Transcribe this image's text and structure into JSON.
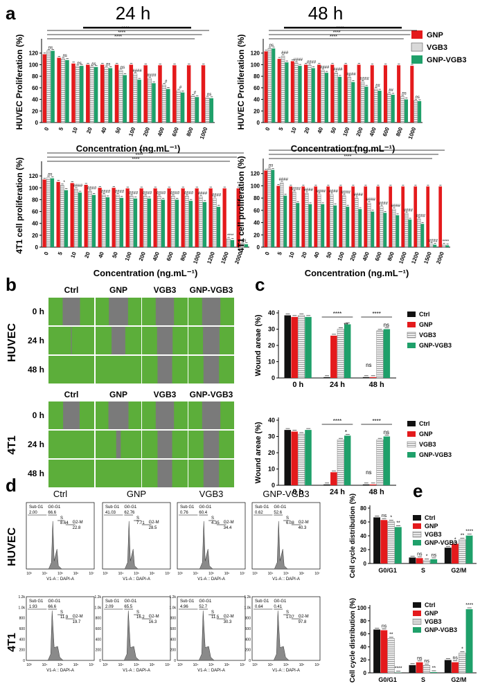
{
  "colors": {
    "gnp": "#e41a1c",
    "vgb3": "#d9d9d9",
    "gnp_vgb3": "#1fa06a",
    "ctrl": "#111111",
    "green_field": "#5cae3a",
    "wound": "#7a7a7a"
  },
  "panel_labels": {
    "a": "a",
    "b": "b",
    "c": "c",
    "d": "d",
    "e": "e"
  },
  "panel_a": {
    "header_24": "24 h",
    "header_48": "48 h",
    "legend": [
      "GNP",
      "VGB3",
      "GNP-VGB3"
    ],
    "star4": "****"
  },
  "chart_data": [
    {
      "id": "a_huvec_24",
      "type": "bar",
      "title": "HUVEC 24 h",
      "ylabel": "HUVEC Proliferation (%)",
      "xlabel": "Concentration (ng.mL⁻¹)",
      "ylim": [
        0,
        140
      ],
      "yticks": [
        0,
        20,
        40,
        60,
        80,
        100,
        120
      ],
      "categories": [
        "0",
        "5",
        "10",
        "20",
        "40",
        "50",
        "100",
        "200",
        "400",
        "600",
        "800",
        "1000"
      ],
      "series": [
        {
          "name": "GNP",
          "values": [
            118,
            112,
            102,
            100,
            100,
            100,
            100,
            99,
            99,
            99,
            99,
            99
          ]
        },
        {
          "name": "VGB3",
          "values": [
            124,
            110,
            97,
            96,
            95,
            90,
            84,
            76,
            65,
            55,
            46,
            43
          ]
        },
        {
          "name": "GNP-VGB3",
          "values": [
            124,
            108,
            98,
            96,
            94,
            82,
            74,
            68,
            58,
            52,
            44,
            42
          ]
        }
      ],
      "annotations": [
        "ns",
        "ns",
        "ns",
        "ns",
        "ns",
        "ns",
        "####",
        "####",
        "#",
        "#",
        "#",
        "ns",
        "****",
        "****",
        "****"
      ]
    },
    {
      "id": "a_huvec_48",
      "type": "bar",
      "title": "HUVEC 48 h",
      "ylabel": "HUVEC Proliferation (%)",
      "xlabel": "Concentration (ng.mL⁻¹)",
      "ylim": [
        0,
        140
      ],
      "yticks": [
        0,
        20,
        40,
        60,
        80,
        100,
        120
      ],
      "categories": [
        "0",
        "5",
        "10",
        "20",
        "40",
        "50",
        "100",
        "200",
        "400",
        "600",
        "800",
        "1000"
      ],
      "series": [
        {
          "name": "GNP",
          "values": [
            123,
            110,
            106,
            100,
            100,
            100,
            100,
            100,
            99,
            99,
            99,
            98
          ]
        },
        {
          "name": "VGB3",
          "values": [
            128,
            115,
            103,
            99,
            90,
            86,
            78,
            70,
            58,
            50,
            45,
            38
          ]
        },
        {
          "name": "GNP-VGB3",
          "values": [
            128,
            104,
            98,
            94,
            86,
            79,
            70,
            62,
            55,
            48,
            40,
            37
          ]
        }
      ],
      "annotations": [
        "ns",
        "###",
        "####",
        "####",
        "####",
        "####",
        "####",
        "####",
        "##",
        "##",
        "ns",
        "ns",
        "****",
        "****"
      ]
    },
    {
      "id": "a_4t1_24",
      "type": "bar",
      "title": "4T1 24 h",
      "ylabel": "4T1 cell proliferation (%)",
      "xlabel": "Concentration (ng.mL⁻¹)",
      "ylim": [
        0,
        140
      ],
      "yticks": [
        0,
        20,
        40,
        60,
        80,
        100,
        120
      ],
      "categories": [
        "0",
        "5",
        "10",
        "20",
        "40",
        "50",
        "100",
        "200",
        "400",
        "600",
        "800",
        "1000",
        "1200",
        "1500",
        "2000"
      ],
      "series": [
        {
          "name": "GNP",
          "values": [
            114,
            110,
            108,
            105,
            100,
            100,
            99,
            99,
            99,
            99,
            99,
            99,
            99,
            99,
            99
          ]
        },
        {
          "name": "VGB3",
          "values": [
            117,
            104,
            98,
            94,
            88,
            88,
            86,
            86,
            86,
            86,
            86,
            85,
            82,
            14,
            6
          ]
        },
        {
          "name": "GNP-VGB3",
          "values": [
            116,
            96,
            92,
            88,
            84,
            83,
            82,
            82,
            80,
            80,
            78,
            76,
            68,
            12,
            5
          ]
        }
      ],
      "annotations": [
        "ns",
        "*",
        "####",
        "####",
        "####",
        "####",
        "####",
        "####",
        "####",
        "####",
        "####",
        "####",
        "####",
        "****",
        "ns",
        "ns",
        "****",
        "****"
      ]
    },
    {
      "id": "a_4t1_48",
      "type": "bar",
      "title": "4T1 48 h",
      "ylabel": "4T1 cell proliferation (%)",
      "xlabel": "Concentration (ng.mL⁻¹)",
      "ylim": [
        0,
        140
      ],
      "yticks": [
        0,
        20,
        40,
        60,
        80,
        100,
        120
      ],
      "categories": [
        "0",
        "5",
        "10",
        "20",
        "40",
        "50",
        "100",
        "200",
        "400",
        "600",
        "800",
        "1000",
        "1200",
        "1500",
        "2000"
      ],
      "series": [
        {
          "name": "GNP",
          "values": [
            125,
            100,
            99,
            99,
            99,
            99,
            99,
            99,
            99,
            99,
            99,
            99,
            99,
            99,
            99
          ]
        },
        {
          "name": "VGB3",
          "values": [
            128,
            105,
            90,
            88,
            86,
            86,
            84,
            80,
            72,
            66,
            62,
            55,
            46,
            5,
            4
          ]
        },
        {
          "name": "GNP-VGB3",
          "values": [
            126,
            84,
            72,
            70,
            70,
            68,
            66,
            62,
            58,
            56,
            52,
            45,
            38,
            4,
            3
          ]
        }
      ],
      "annotations": [
        "ns",
        "####",
        "####",
        "####",
        "####",
        "####",
        "####",
        "####",
        "####",
        "####",
        "####",
        "####",
        "####",
        "####",
        "****",
        "****"
      ]
    },
    {
      "id": "c_huvec",
      "type": "bar",
      "ylabel": "Wound areae (%)",
      "ylim": [
        0,
        40
      ],
      "yticks": [
        0,
        10,
        20,
        30,
        40
      ],
      "categories": [
        "0 h",
        "24 h",
        "48 h"
      ],
      "series": [
        {
          "name": "Ctrl",
          "values": [
            38.5,
            0.5,
            0.5
          ]
        },
        {
          "name": "GNP",
          "values": [
            37.5,
            26.0,
            0.5
          ]
        },
        {
          "name": "VGB3",
          "values": [
            38.5,
            30.0,
            29.0
          ]
        },
        {
          "name": "GNP-VGB3",
          "values": [
            37.5,
            33.0,
            30.0
          ]
        }
      ],
      "annotations": [
        "****",
        "**",
        "****",
        "ns",
        "ns"
      ]
    },
    {
      "id": "c_4t1",
      "type": "bar",
      "ylabel": "Wound areae (%)",
      "ylim": [
        0,
        40
      ],
      "yticks": [
        0,
        10,
        20,
        30,
        40
      ],
      "categories": [
        "0 h",
        "24 h",
        "48 h"
      ],
      "series": [
        {
          "name": "Ctrl",
          "values": [
            34.0,
            0.5,
            0.5
          ]
        },
        {
          "name": "GNP",
          "values": [
            33.0,
            8.0,
            0.5
          ]
        },
        {
          "name": "VGB3",
          "values": [
            31.5,
            28.0,
            28.0
          ]
        },
        {
          "name": "GNP-VGB3",
          "values": [
            34.0,
            30.5,
            30.0
          ]
        }
      ],
      "annotations": [
        "****",
        "*",
        "****",
        "ns",
        "ns"
      ]
    },
    {
      "id": "e_huvec",
      "type": "bar",
      "ylabel": "Cell cycle distribution (%)",
      "ylim": [
        0,
        80
      ],
      "yticks": [
        0,
        20,
        40,
        60,
        80
      ],
      "categories": [
        "G0/G1",
        "S",
        "G2/M"
      ],
      "series": [
        {
          "name": "Ctrl",
          "values": [
            66.6,
            8.64,
            22.8
          ]
        },
        {
          "name": "GNP",
          "values": [
            62.76,
            7.71,
            28.5
          ]
        },
        {
          "name": "VGB3",
          "values": [
            60.4,
            4.35,
            34.4
          ]
        },
        {
          "name": "GNP-VGB3",
          "values": [
            52.6,
            6.08,
            40.3
          ]
        }
      ],
      "annotations": [
        "ns",
        "*",
        "**",
        "ns",
        "*",
        "ns",
        "*",
        "**",
        "****"
      ]
    },
    {
      "id": "e_4t1",
      "type": "bar",
      "ylabel": "Cell cycle distribution (%)",
      "ylim": [
        0,
        100
      ],
      "yticks": [
        0,
        20,
        40,
        60,
        80,
        100
      ],
      "categories": [
        "G0/G1",
        "S",
        "G2/M"
      ],
      "series": [
        {
          "name": "Ctrl",
          "values": [
            66.6,
            11.9,
            19.7
          ]
        },
        {
          "name": "GNP",
          "values": [
            65.5,
            16.2,
            16.3
          ]
        },
        {
          "name": "VGB3",
          "values": [
            52.7,
            11.5,
            30.3
          ]
        },
        {
          "name": "GNP-VGB3",
          "values": [
            0.41,
            1.07,
            97.8
          ]
        }
      ],
      "annotations": [
        "ns",
        "**",
        "****",
        "ns",
        "ns",
        "**",
        "ns",
        "*",
        "****"
      ]
    }
  ],
  "panel_b": {
    "columns": [
      "Ctrl",
      "GNP",
      "VGB3",
      "GNP-VGB3"
    ],
    "rows": [
      "0 h",
      "24 h",
      "48 h"
    ],
    "group_huvec": "HUVEC",
    "group_4t1": "4T1",
    "gap_fraction_huvec": [
      [
        0.38,
        0.42,
        0.4,
        0.4
      ],
      [
        0.02,
        0.3,
        0.34,
        0.36
      ],
      [
        0.0,
        0.0,
        0.32,
        0.34
      ]
    ],
    "gap_fraction_4t1": [
      [
        0.36,
        0.44,
        0.4,
        0.4
      ],
      [
        0.0,
        0.1,
        0.32,
        0.34
      ],
      [
        0.0,
        0.0,
        0.32,
        0.34
      ]
    ]
  },
  "panel_cd_legend": [
    "Ctrl",
    "GNP",
    "VGB3",
    "GNP-VGB3"
  ],
  "panel_d": {
    "columns": [
      "Ctrl",
      "GNP",
      "VGB3",
      "GNP-VGB3"
    ],
    "group_huvec": "HUVEC",
    "group_4t1": "4T1",
    "xlabel": "V1-A :: DAPI-A",
    "gate_labels": {
      "sub": "Sub G1",
      "g0": "G0-G1",
      "s": "S",
      "g2": "G2-M"
    },
    "yticks_4t1": [
      "0",
      "200",
      "400",
      "600",
      "800",
      "1.0k",
      "1.2k"
    ],
    "xticks": [
      "10³",
      "10⁴",
      "10⁵",
      "10⁶",
      "10⁷"
    ],
    "huvec": [
      {
        "sub": "2.00",
        "g0": "66.6",
        "s": "8.64",
        "g2": "22.8"
      },
      {
        "sub": "41.03",
        "g0": "62.76",
        "s": "7.71",
        "g2": "28.5"
      },
      {
        "sub": "0.76",
        "g0": "60.4",
        "s": "4.35",
        "g2": "34.4"
      },
      {
        "sub": "0.62",
        "g0": "52.6",
        "s": "6.08",
        "g2": "40.3"
      }
    ],
    "t41": [
      {
        "sub": "1.93",
        "g0": "66.6",
        "s": "11.9",
        "g2": "19.7"
      },
      {
        "sub": "2.09",
        "g0": "65.5",
        "s": "16.2",
        "g2": "16.3"
      },
      {
        "sub": "4.96",
        "g0": "52.7",
        "s": "11.5",
        "g2": "30.3"
      },
      {
        "sub": "0.64",
        "g0": "0.41",
        "s": "1.07",
        "g2": "97.8"
      }
    ]
  }
}
